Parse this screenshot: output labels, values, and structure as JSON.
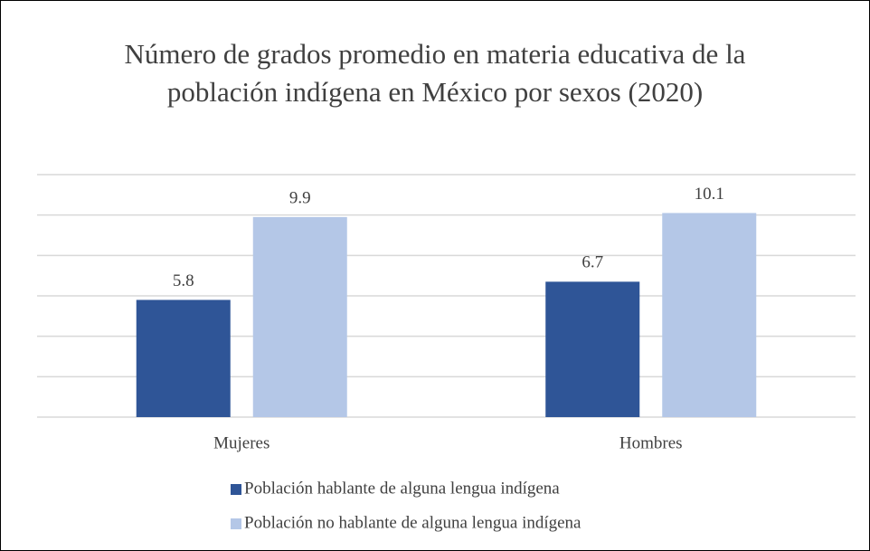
{
  "chart_data": {
    "type": "bar",
    "title": "Número de grados promedio en materia educativa de la población indígena en México por sexos (2020)",
    "categories": [
      "Mujeres",
      "Hombres"
    ],
    "series": [
      {
        "name": "Población hablante de alguna lengua indígena",
        "color": "#2f5597",
        "values": [
          5.8,
          6.7
        ]
      },
      {
        "name": "Población no hablante de alguna lengua indígena",
        "color": "#b4c7e7",
        "values": [
          9.9,
          10.1
        ]
      }
    ],
    "ylim": [
      0,
      12
    ],
    "yticks": [
      0,
      2,
      4,
      6,
      8,
      10,
      12
    ],
    "grid": true,
    "legend": "bottom"
  }
}
